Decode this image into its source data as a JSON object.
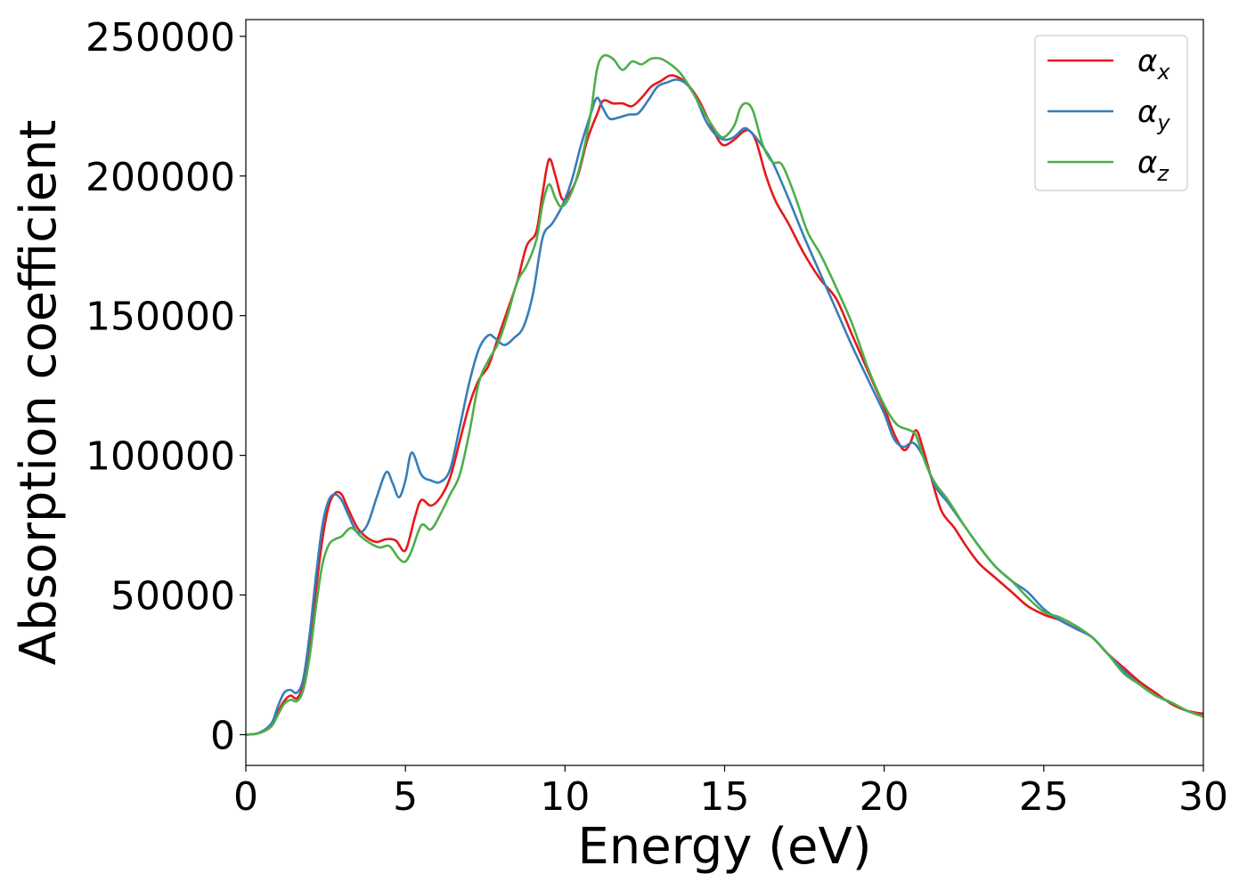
{
  "chart_data": {
    "type": "line",
    "xlabel": "Energy (eV)",
    "ylabel": "Absorption coefficient",
    "xlim": [
      0,
      30
    ],
    "ylim": [
      -11000,
      256000
    ],
    "xticks": [
      0,
      5,
      10,
      15,
      20,
      25,
      30
    ],
    "xtick_labels": [
      "0",
      "5",
      "10",
      "15",
      "20",
      "25",
      "30"
    ],
    "yticks": [
      0,
      50000,
      100000,
      150000,
      200000,
      250000
    ],
    "ytick_labels": [
      "0",
      "50000",
      "100000",
      "150000",
      "200000",
      "250000"
    ],
    "grid": false,
    "legend_position": "top-right",
    "series": [
      {
        "name": "α",
        "subscript": "x",
        "color": "#e41a1c",
        "x": [
          0,
          0.4,
          0.8,
          1.0,
          1.2,
          1.4,
          1.6,
          1.8,
          2.0,
          2.2,
          2.4,
          2.6,
          2.8,
          3.0,
          3.2,
          3.5,
          3.8,
          4.1,
          4.4,
          4.7,
          5.0,
          5.3,
          5.5,
          5.8,
          6.1,
          6.4,
          6.7,
          7.0,
          7.3,
          7.6,
          7.9,
          8.2,
          8.5,
          8.8,
          9.1,
          9.3,
          9.5,
          9.7,
          9.9,
          10.1,
          10.4,
          10.7,
          11.0,
          11.2,
          11.5,
          11.8,
          12.1,
          12.4,
          12.7,
          13.0,
          13.3,
          13.6,
          13.9,
          14.2,
          14.5,
          14.8,
          15.0,
          15.3,
          15.6,
          15.8,
          16.0,
          16.3,
          16.6,
          17.0,
          17.5,
          18.0,
          18.5,
          19.0,
          19.5,
          20.0,
          20.3,
          20.6,
          20.8,
          21.0,
          21.2,
          21.5,
          21.8,
          22.2,
          22.6,
          23.0,
          23.5,
          24.0,
          24.5,
          25.0,
          25.5,
          26.0,
          26.5,
          27.0,
          27.5,
          28.0,
          28.5,
          29.0,
          29.5,
          30.0
        ],
        "y": [
          0,
          500,
          3000,
          8000,
          12000,
          14000,
          13000,
          18000,
          32000,
          52000,
          70000,
          82000,
          86500,
          86000,
          81000,
          74000,
          70500,
          69000,
          70000,
          69500,
          66000,
          78000,
          84000,
          82000,
          85000,
          92000,
          105000,
          118000,
          127000,
          132000,
          142000,
          152000,
          162000,
          175000,
          180000,
          194000,
          206000,
          200000,
          192000,
          193000,
          200000,
          213000,
          222000,
          227000,
          226000,
          226000,
          225000,
          228000,
          232000,
          234000,
          236000,
          235000,
          232000,
          227000,
          220000,
          213000,
          211000,
          213000,
          216000,
          216000,
          212000,
          200000,
          191000,
          183000,
          172000,
          163000,
          156000,
          143000,
          130000,
          117000,
          108000,
          102000,
          104000,
          109000,
          103000,
          91000,
          80000,
          74000,
          67000,
          61000,
          56000,
          51000,
          46000,
          43000,
          41000,
          38000,
          35000,
          29000,
          24000,
          19000,
          15000,
          11000,
          8500,
          7500
        ]
      },
      {
        "name": "α",
        "subscript": "y",
        "color": "#377eb8",
        "x": [
          0,
          0.4,
          0.8,
          1.0,
          1.2,
          1.4,
          1.6,
          1.8,
          2.0,
          2.2,
          2.4,
          2.6,
          2.8,
          3.0,
          3.2,
          3.5,
          3.8,
          4.1,
          4.4,
          4.6,
          4.8,
          5.0,
          5.2,
          5.5,
          5.8,
          6.1,
          6.4,
          6.7,
          7.0,
          7.3,
          7.6,
          7.8,
          8.1,
          8.4,
          8.7,
          9.0,
          9.3,
          9.6,
          9.9,
          10.2,
          10.5,
          10.8,
          11.0,
          11.2,
          11.4,
          11.7,
          12.0,
          12.3,
          12.6,
          12.9,
          13.2,
          13.5,
          13.8,
          14.1,
          14.4,
          14.7,
          15.0,
          15.3,
          15.6,
          15.8,
          16.1,
          16.5,
          17.0,
          17.5,
          18.0,
          18.5,
          19.0,
          19.5,
          20.0,
          20.3,
          20.6,
          20.9,
          21.2,
          21.6,
          22.0,
          22.5,
          23.0,
          23.5,
          24.0,
          24.5,
          25.0,
          25.5,
          26.0,
          26.5,
          27.0,
          27.5,
          28.0,
          28.5,
          29.0,
          29.5,
          30.0
        ],
        "y": [
          0,
          600,
          4000,
          10000,
          15000,
          16000,
          15000,
          20000,
          36000,
          57000,
          75000,
          84000,
          86000,
          84000,
          79000,
          72500,
          75000,
          85000,
          94000,
          90000,
          85000,
          91000,
          101000,
          93000,
          91000,
          90500,
          95000,
          110000,
          126000,
          138000,
          143000,
          142000,
          139500,
          142000,
          146000,
          158000,
          178000,
          183000,
          189000,
          198000,
          211000,
          222000,
          228000,
          224000,
          220500,
          221000,
          222000,
          222500,
          227000,
          232000,
          233500,
          234500,
          233000,
          228000,
          220000,
          215000,
          213000,
          214000,
          217000,
          216000,
          212000,
          205000,
          192000,
          178000,
          165000,
          152000,
          139000,
          127000,
          115000,
          106000,
          103000,
          104500,
          100000,
          89000,
          83000,
          75000,
          67000,
          60000,
          55000,
          51000,
          45000,
          41000,
          38000,
          35000,
          29000,
          23000,
          18000,
          14000,
          11500,
          8500,
          6500
        ]
      },
      {
        "name": "α",
        "subscript": "z",
        "color": "#4daf4a",
        "x": [
          0,
          0.4,
          0.8,
          1.0,
          1.2,
          1.4,
          1.6,
          1.8,
          2.0,
          2.2,
          2.4,
          2.6,
          2.8,
          3.0,
          3.3,
          3.6,
          3.9,
          4.2,
          4.5,
          4.8,
          5.0,
          5.2,
          5.5,
          5.8,
          6.1,
          6.4,
          6.7,
          7.0,
          7.3,
          7.6,
          7.9,
          8.2,
          8.5,
          8.8,
          9.1,
          9.3,
          9.5,
          9.7,
          9.9,
          10.2,
          10.5,
          10.8,
          11.0,
          11.2,
          11.5,
          11.8,
          12.1,
          12.4,
          12.7,
          13.0,
          13.3,
          13.6,
          13.9,
          14.2,
          14.5,
          14.8,
          15.0,
          15.3,
          15.5,
          15.7,
          15.9,
          16.2,
          16.5,
          16.8,
          17.2,
          17.6,
          18.0,
          18.5,
          19.0,
          19.5,
          20.0,
          20.4,
          20.8,
          21.0,
          21.3,
          21.6,
          22.0,
          22.5,
          23.0,
          23.5,
          24.0,
          24.5,
          25.0,
          25.5,
          26.0,
          26.5,
          27.0,
          27.5,
          28.0,
          28.5,
          29.0,
          29.5,
          30.0
        ],
        "y": [
          0,
          500,
          3000,
          7000,
          11000,
          12500,
          12000,
          16000,
          28000,
          46000,
          61000,
          68000,
          70000,
          71000,
          74000,
          71000,
          68500,
          67000,
          67500,
          63000,
          62000,
          66000,
          75000,
          73500,
          79000,
          86000,
          93000,
          108000,
          126000,
          134000,
          140000,
          150000,
          162000,
          168000,
          177000,
          190000,
          197000,
          192000,
          189000,
          194000,
          205000,
          222000,
          238000,
          243000,
          242000,
          238000,
          241000,
          240000,
          242000,
          242000,
          240000,
          237000,
          232000,
          226000,
          220000,
          215000,
          214000,
          218000,
          224500,
          226000,
          223000,
          211000,
          205000,
          204000,
          193000,
          180000,
          172000,
          160000,
          147000,
          131000,
          118000,
          111000,
          109000,
          107000,
          97000,
          90000,
          84000,
          75000,
          67000,
          60000,
          55000,
          49000,
          44000,
          42000,
          39000,
          35000,
          29000,
          22000,
          18000,
          14000,
          11500,
          8500,
          6500
        ]
      }
    ]
  }
}
